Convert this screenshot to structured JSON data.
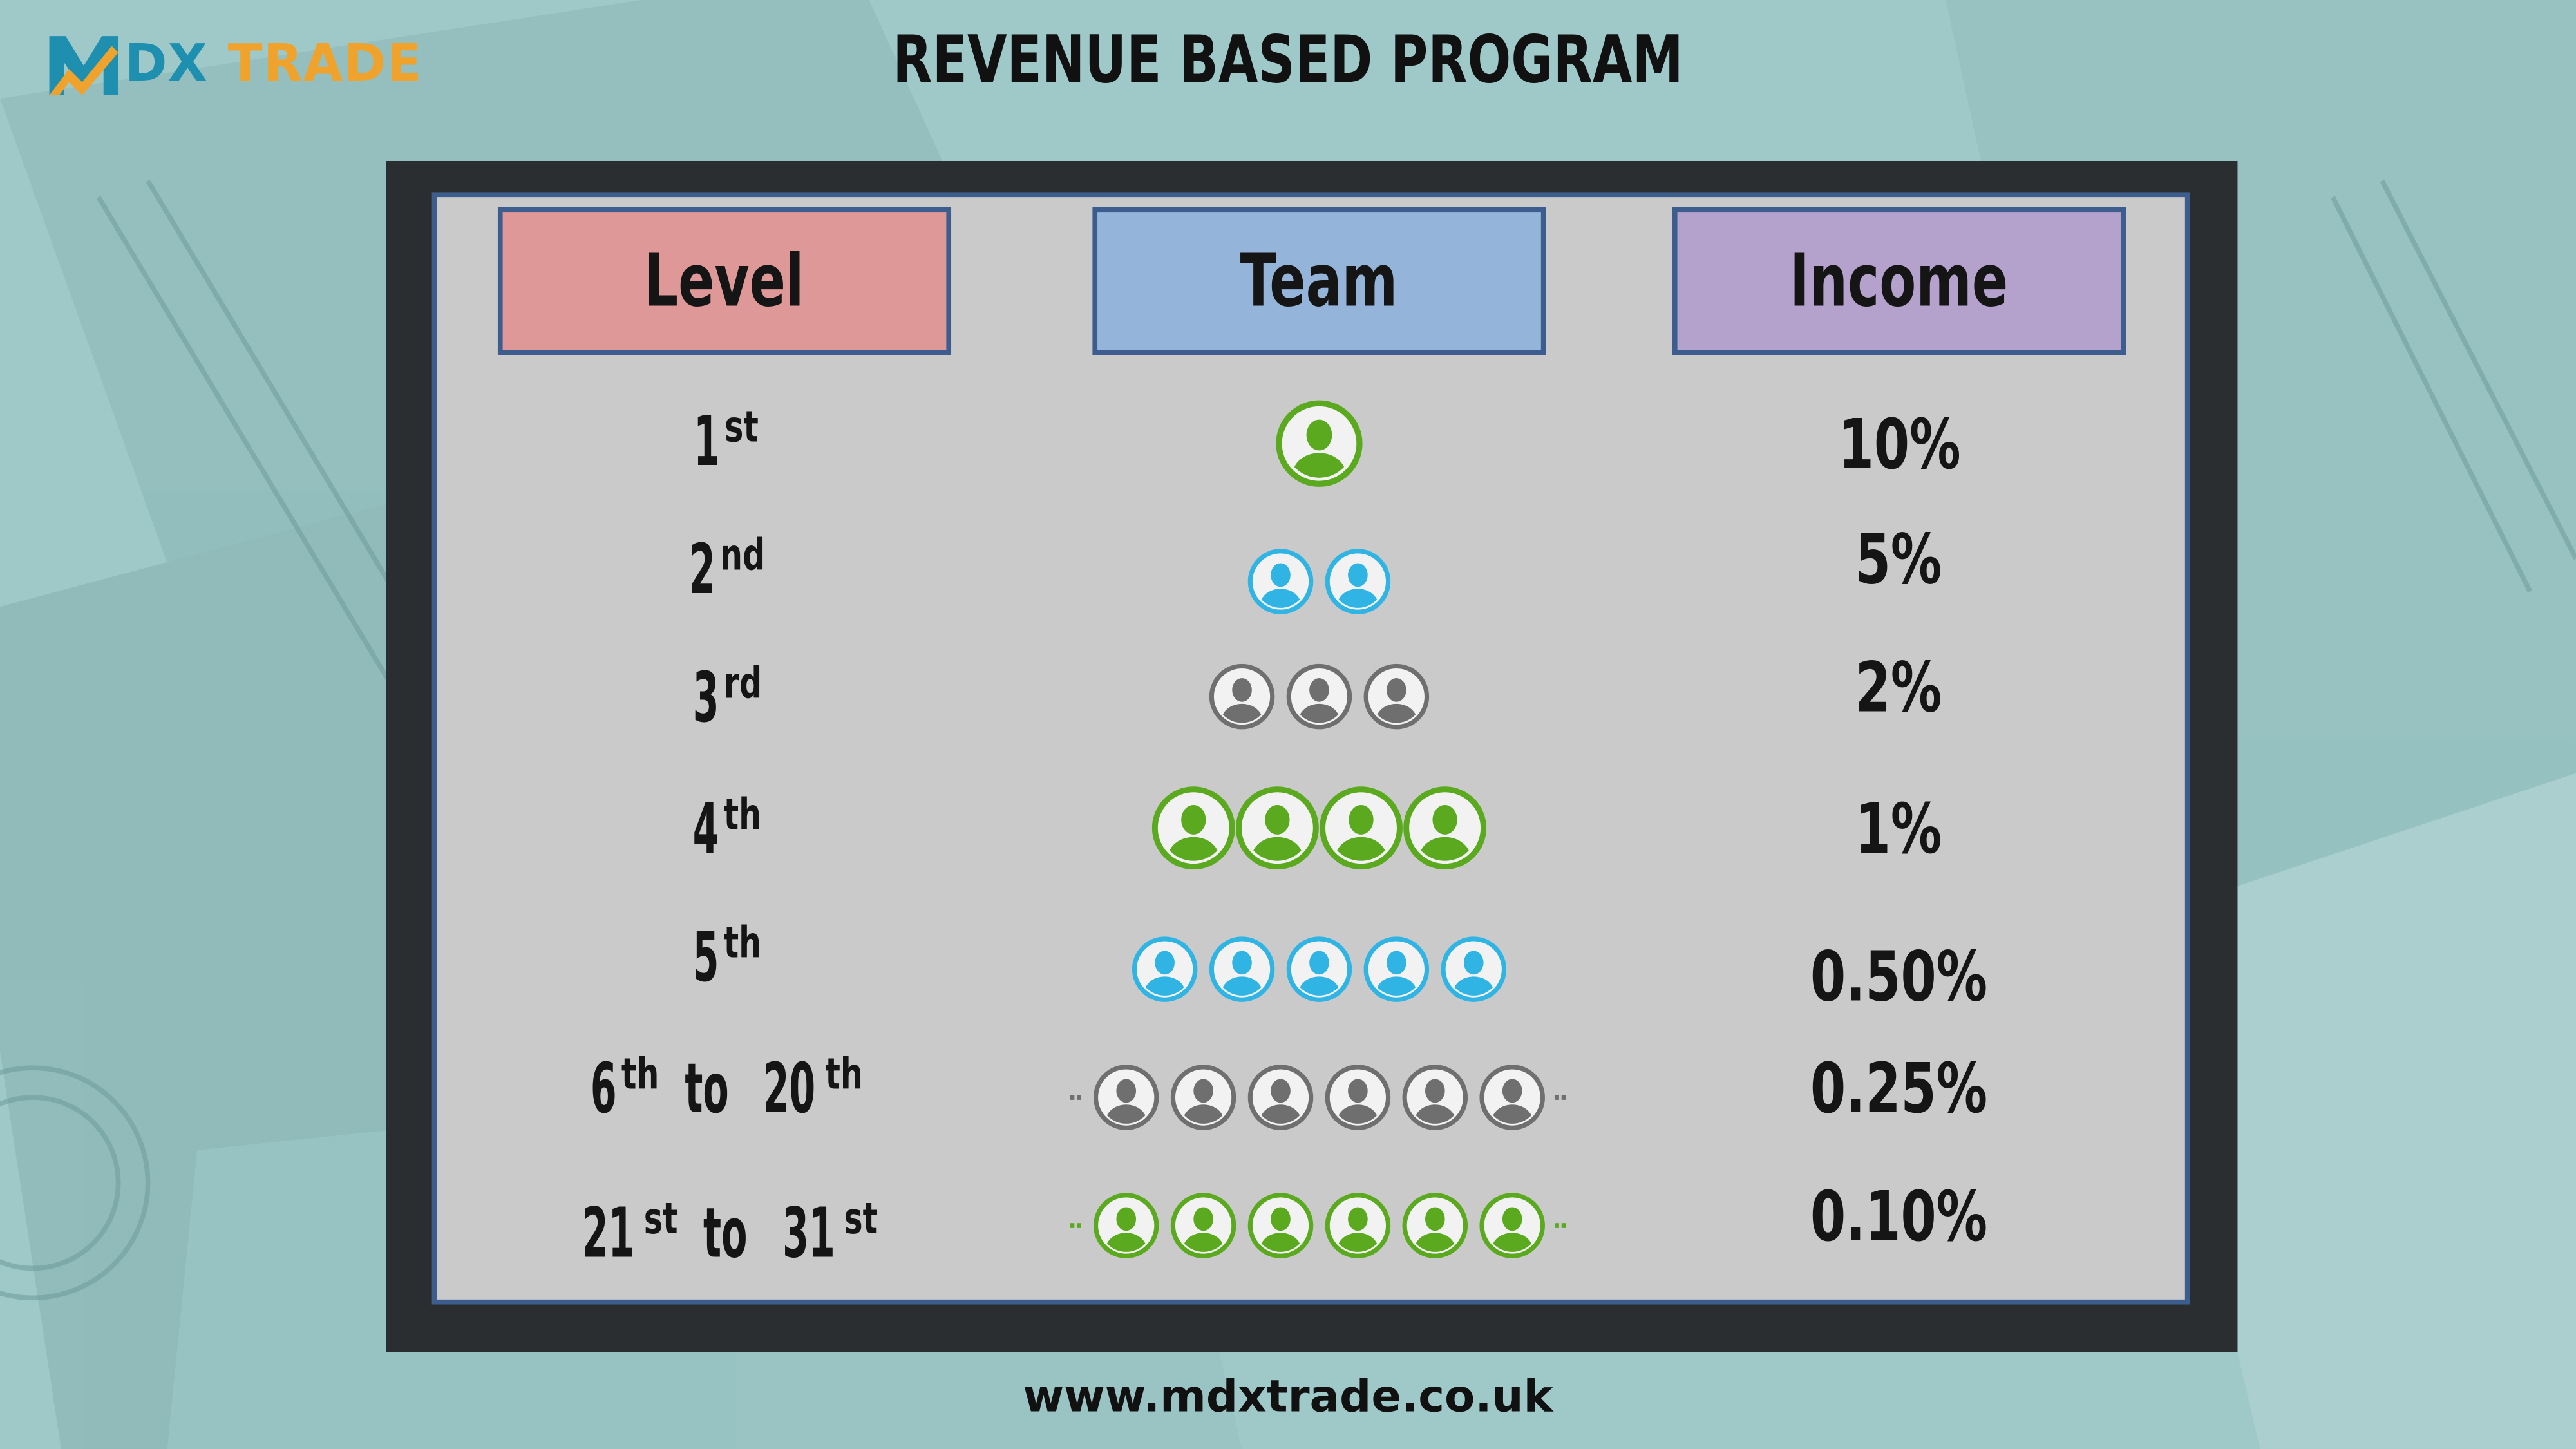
{
  "brand": {
    "logo_text": "MDX TRADE",
    "primary_color": "#1f8fb0",
    "accent_color": "#f0a32c"
  },
  "title": "REVENUE BASED PROGRAM",
  "headers": {
    "level": "Level",
    "team": "Team",
    "income": "Income",
    "level_color": "#de9898",
    "team_color": "#95b4d9",
    "income_color": "#b4a2cc"
  },
  "rows": [
    {
      "level": "1",
      "level_sup": "st",
      "level_to": "",
      "level_to_sup": "",
      "income": "10%",
      "team_count": 1,
      "team_color": "green",
      "continues": false
    },
    {
      "level": "2",
      "level_sup": "nd",
      "level_to": "",
      "level_to_sup": "",
      "income": "5%",
      "team_count": 2,
      "team_color": "blue",
      "continues": false
    },
    {
      "level": "3",
      "level_sup": "rd",
      "level_to": "",
      "level_to_sup": "",
      "income": "2%",
      "team_count": 3,
      "team_color": "gray",
      "continues": false
    },
    {
      "level": "4",
      "level_sup": "th",
      "level_to": "",
      "level_to_sup": "",
      "income": "1%",
      "team_count": 4,
      "team_color": "green",
      "continues": false
    },
    {
      "level": "5",
      "level_sup": "th",
      "level_to": "",
      "level_to_sup": "",
      "income": "0.50%",
      "team_count": 5,
      "team_color": "blue",
      "continues": false
    },
    {
      "level": "6",
      "level_sup": "th",
      "level_to": "20",
      "level_to_sup": "th",
      "income": "0.25%",
      "team_count": 6,
      "team_color": "gray",
      "continues": true
    },
    {
      "level": "21",
      "level_sup": "st",
      "level_to": "31",
      "level_to_sup": "st",
      "income": "0.10%",
      "team_count": 6,
      "team_color": "green",
      "continues": true
    }
  ],
  "range_word": "to",
  "team_icon": "person-icon",
  "team_colors": {
    "green": "#5aa91f",
    "blue": "#2fb4e4",
    "gray": "#6f6f6f"
  },
  "website": "www.mdxtrade.co.uk"
}
